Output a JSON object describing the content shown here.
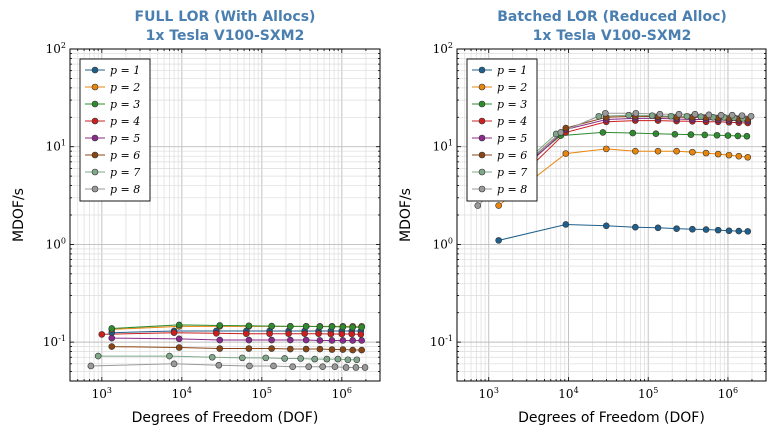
{
  "chart_data": [
    {
      "type": "line",
      "title": "FULL LOR (With Allocs)",
      "subtitle": "1x Tesla V100-SXM2",
      "xlabel": "Degrees of Freedom (DOF)",
      "ylabel": "MDOF/s",
      "xscale": "log",
      "yscale": "log",
      "xlim": [
        400,
        3000000
      ],
      "ylim": [
        0.04,
        100
      ],
      "xticks": [
        "10^3",
        "10^4",
        "10^5",
        "10^6"
      ],
      "yticks": [
        "10^-1",
        "10^0",
        "10^1",
        "10^2"
      ],
      "grid": true,
      "legend_position": "top-left",
      "series": [
        {
          "name": "p = 1",
          "color": "#1f5f8b",
          "x": [
            1331,
            8000,
            27000,
            64000,
            125000,
            216000,
            343000,
            512000,
            729000,
            1000000,
            1331000,
            1728000
          ],
          "y": [
            0.125,
            0.13,
            0.13,
            0.13,
            0.13,
            0.13,
            0.13,
            0.13,
            0.13,
            0.13,
            0.13,
            0.13
          ]
        },
        {
          "name": "p = 2",
          "color": "#e8850c",
          "x": [
            1331,
            9261,
            29791,
            68921,
            132651,
            226981,
            357911,
            531441,
            753571,
            1030301,
            1367631,
            1771561
          ],
          "y": [
            0.135,
            0.145,
            0.145,
            0.145,
            0.145,
            0.145,
            0.145,
            0.145,
            0.145,
            0.145,
            0.145,
            0.145
          ]
        },
        {
          "name": "p = 3",
          "color": "#2e8b2e",
          "x": [
            1331,
            9261,
            29791,
            68921,
            132651,
            226981,
            357911,
            531441,
            753571,
            1030301,
            1367631,
            1771561
          ],
          "y": [
            0.138,
            0.15,
            0.148,
            0.147,
            0.146,
            0.145,
            0.145,
            0.144,
            0.144,
            0.143,
            0.142,
            0.142
          ]
        },
        {
          "name": "p = 4",
          "color": "#cc1f1f",
          "x": [
            1000,
            8000,
            27000,
            64000,
            125000,
            216000,
            343000,
            512000,
            729000,
            1000000,
            1331000,
            1728000
          ],
          "y": [
            0.12,
            0.125,
            0.123,
            0.122,
            0.122,
            0.122,
            0.122,
            0.122,
            0.121,
            0.121,
            0.121,
            0.12
          ]
        },
        {
          "name": "p = 5",
          "color": "#8b2a8b",
          "x": [
            1331,
            9261,
            29791,
            68921,
            132651,
            226981,
            357911,
            531441,
            753571,
            1030301,
            1367631,
            1771561
          ],
          "y": [
            0.11,
            0.108,
            0.105,
            0.105,
            0.105,
            0.105,
            0.105,
            0.104,
            0.104,
            0.104,
            0.104,
            0.104
          ]
        },
        {
          "name": "p = 6",
          "color": "#8b4513",
          "x": [
            1331,
            9261,
            29791,
            68921,
            132651,
            226981,
            357911,
            531441,
            753571,
            1030301,
            1367631,
            1771561
          ],
          "y": [
            0.09,
            0.088,
            0.086,
            0.086,
            0.086,
            0.085,
            0.085,
            0.085,
            0.084,
            0.084,
            0.083,
            0.083
          ]
        },
        {
          "name": "p = 7",
          "color": "#7fa88a",
          "x": [
            900,
            7000,
            24000,
            57000,
            112000,
            193000,
            306000,
            458000,
            650000,
            893000,
            1190000,
            1540000
          ],
          "y": [
            0.072,
            0.072,
            0.07,
            0.069,
            0.069,
            0.068,
            0.068,
            0.067,
            0.067,
            0.067,
            0.066,
            0.066
          ]
        },
        {
          "name": "p = 8",
          "color": "#9a9a9a",
          "x": [
            729,
            8000,
            29000,
            70000,
            140000,
            243000,
            386000,
            576000,
            820000,
            1130000,
            1500000,
            1950000
          ],
          "y": [
            0.057,
            0.06,
            0.058,
            0.057,
            0.057,
            0.056,
            0.056,
            0.056,
            0.056,
            0.055,
            0.055,
            0.055
          ]
        }
      ]
    },
    {
      "type": "line",
      "title": "Batched LOR (Reduced Alloc)",
      "subtitle": "1x Tesla V100-SXM2",
      "xlabel": "Degrees of Freedom (DOF)",
      "ylabel": "MDOF/s",
      "xscale": "log",
      "yscale": "log",
      "xlim": [
        400,
        3000000
      ],
      "ylim": [
        0.04,
        100
      ],
      "xticks": [
        "10^3",
        "10^4",
        "10^5",
        "10^6"
      ],
      "yticks": [
        "10^-1",
        "10^0",
        "10^1",
        "10^2"
      ],
      "grid": true,
      "legend_position": "top-left",
      "series": [
        {
          "name": "p = 1",
          "color": "#1f5f8b",
          "x": [
            1331,
            9261,
            29791,
            68921,
            132651,
            226981,
            357911,
            531441,
            753571,
            1030301,
            1367631,
            1771561
          ],
          "y": [
            1.1,
            1.6,
            1.55,
            1.5,
            1.48,
            1.45,
            1.43,
            1.42,
            1.4,
            1.38,
            1.37,
            1.36
          ]
        },
        {
          "name": "p = 2",
          "color": "#e8850c",
          "x": [
            1331,
            9261,
            29791,
            68921,
            132651,
            226981,
            357911,
            531441,
            753571,
            1030301,
            1367631,
            1771561
          ],
          "y": [
            2.5,
            8.5,
            9.5,
            9.0,
            9.0,
            9.0,
            8.8,
            8.6,
            8.4,
            8.2,
            8.0,
            7.8
          ]
        },
        {
          "name": "p = 3",
          "color": "#2e8b2e",
          "x": [
            1000,
            8000,
            27000,
            64000,
            125000,
            216000,
            343000,
            512000,
            729000,
            1000000,
            1331000,
            1728000
          ],
          "y": [
            3.2,
            13.0,
            14.0,
            13.8,
            13.6,
            13.4,
            13.3,
            13.2,
            13.1,
            13.0,
            12.9,
            12.8
          ]
        },
        {
          "name": "p = 4",
          "color": "#cc1f1f",
          "x": [
            1331,
            9261,
            29791,
            68921,
            132651,
            226981,
            357911,
            531441,
            753571,
            1030301,
            1367631,
            1771561
          ],
          "y": [
            3.0,
            14.0,
            18.0,
            18.5,
            18.5,
            18.3,
            18.2,
            18.0,
            18.0,
            17.8,
            17.6,
            17.5
          ]
        },
        {
          "name": "p = 5",
          "color": "#8b2a8b",
          "x": [
            1331,
            9261,
            29791,
            68921,
            132651,
            226981,
            357911,
            531441,
            753571,
            1030301,
            1367631,
            1771561
          ],
          "y": [
            3.5,
            15.0,
            19.0,
            19.5,
            19.5,
            19.2,
            19.0,
            19.0,
            18.8,
            18.6,
            18.5,
            18.3
          ]
        },
        {
          "name": "p = 6",
          "color": "#8b4513",
          "x": [
            1331,
            9261,
            29791,
            68921,
            132651,
            226981,
            357911,
            531441,
            753571,
            1030301,
            1367631,
            1771561
          ],
          "y": [
            3.8,
            15.5,
            20.0,
            20.5,
            20.3,
            20.0,
            20.0,
            19.8,
            19.6,
            19.4,
            19.2,
            19.0
          ]
        },
        {
          "name": "p = 7",
          "color": "#7fa88a",
          "x": [
            900,
            7000,
            24000,
            57000,
            112000,
            193000,
            306000,
            458000,
            650000,
            893000,
            1190000,
            1540000
          ],
          "y": [
            3.0,
            13.5,
            20.5,
            21.0,
            20.8,
            20.5,
            20.5,
            20.3,
            20.0,
            20.0,
            19.8,
            19.5
          ]
        },
        {
          "name": "p = 8",
          "color": "#9a9a9a",
          "x": [
            729,
            8000,
            29000,
            70000,
            140000,
            243000,
            386000,
            576000,
            820000,
            1130000,
            1500000,
            1950000
          ],
          "y": [
            2.5,
            14.0,
            22.0,
            22.0,
            21.5,
            21.5,
            21.5,
            21.2,
            21.0,
            21.0,
            20.8,
            20.5
          ]
        }
      ]
    }
  ]
}
